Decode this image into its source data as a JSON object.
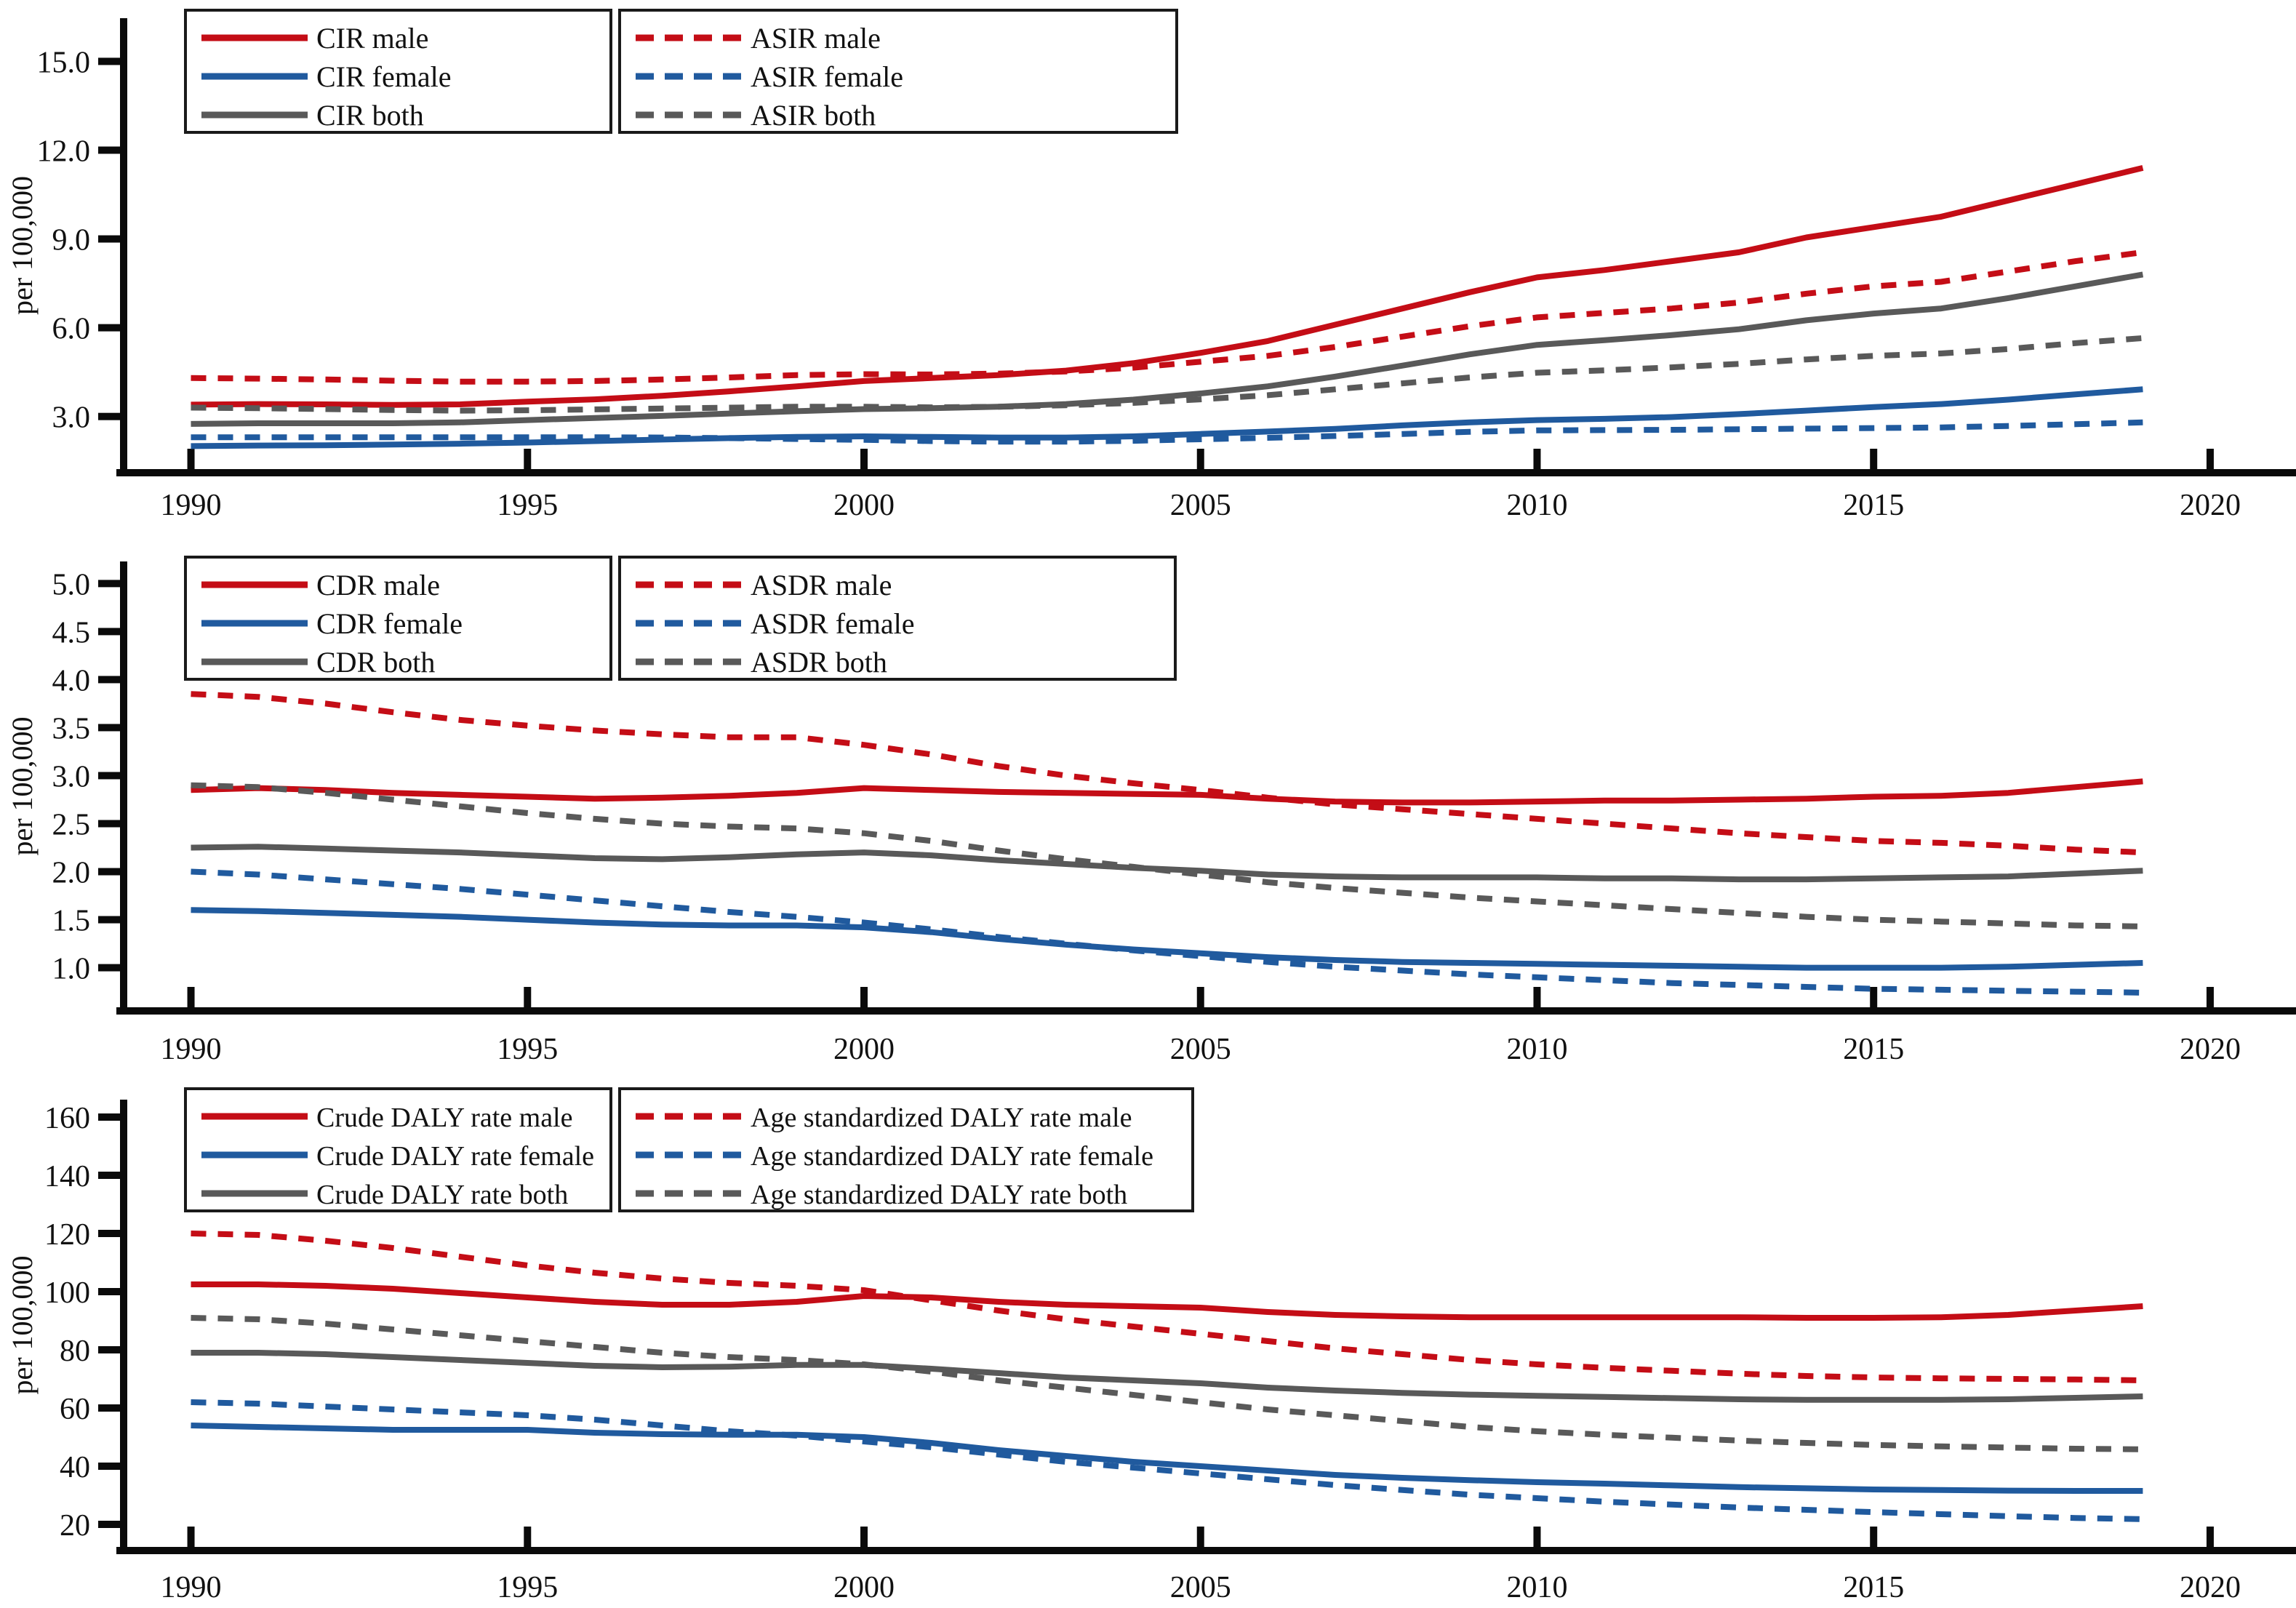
{
  "figure": {
    "ylabel": "per 100,000"
  },
  "colors": {
    "male": "#c40d16",
    "female": "#205a9e",
    "both": "#595959",
    "axis": "#0a0a0a",
    "text": "#111111",
    "legend_border": "#1a1a1a",
    "background": "#ffffff"
  },
  "x_axis": {
    "years": [
      1990,
      1991,
      1992,
      1993,
      1994,
      1995,
      1996,
      1997,
      1998,
      1999,
      2000,
      2001,
      2002,
      2003,
      2004,
      2005,
      2006,
      2007,
      2008,
      2009,
      2010,
      2011,
      2012,
      2013,
      2014,
      2015,
      2016,
      2017,
      2018,
      2019
    ],
    "ticks": [
      1990,
      1995,
      2000,
      2005,
      2010,
      2015,
      2020
    ],
    "xlim": [
      1989.0,
      2021.2
    ]
  },
  "chart_data": [
    {
      "type": "line",
      "name": "incidence",
      "ylabel": "per 100,000",
      "ylim": [
        1.1,
        16.46
      ],
      "yticks": [
        3.0,
        6.0,
        9.0,
        12.0,
        15.0
      ],
      "ytick_decimals": 1,
      "grid": false,
      "legend_position": "top-left, two boxes (solid | dashed)",
      "series": [
        {
          "name": "CIR male",
          "color": "male",
          "dashed": false,
          "values": [
            3.4,
            3.42,
            3.41,
            3.39,
            3.41,
            3.5,
            3.58,
            3.7,
            3.85,
            4.02,
            4.2,
            4.3,
            4.4,
            4.55,
            4.8,
            5.15,
            5.55,
            6.1,
            6.65,
            7.2,
            7.7,
            7.95,
            8.25,
            8.55,
            9.05,
            9.4,
            9.75,
            10.3,
            10.85,
            11.4
          ]
        },
        {
          "name": "CIR female",
          "color": "female",
          "dashed": false,
          "values": [
            2.0,
            2.02,
            2.03,
            2.05,
            2.08,
            2.12,
            2.17,
            2.22,
            2.27,
            2.31,
            2.33,
            2.31,
            2.29,
            2.29,
            2.33,
            2.41,
            2.49,
            2.58,
            2.7,
            2.8,
            2.88,
            2.92,
            2.98,
            3.08,
            3.2,
            3.32,
            3.42,
            3.57,
            3.75,
            3.92
          ]
        },
        {
          "name": "CIR both",
          "color": "both",
          "dashed": false,
          "values": [
            2.75,
            2.77,
            2.77,
            2.77,
            2.8,
            2.88,
            2.95,
            3.02,
            3.1,
            3.18,
            3.25,
            3.28,
            3.33,
            3.42,
            3.57,
            3.78,
            4.02,
            4.35,
            4.72,
            5.1,
            5.42,
            5.58,
            5.75,
            5.95,
            6.25,
            6.48,
            6.65,
            7.0,
            7.4,
            7.8
          ]
        },
        {
          "name": "ASIR male",
          "color": "male",
          "dashed": true,
          "values": [
            4.3,
            4.28,
            4.25,
            4.21,
            4.18,
            4.18,
            4.2,
            4.25,
            4.32,
            4.4,
            4.43,
            4.42,
            4.45,
            4.52,
            4.65,
            4.85,
            5.05,
            5.35,
            5.7,
            6.05,
            6.35,
            6.5,
            6.65,
            6.85,
            7.15,
            7.4,
            7.55,
            7.9,
            8.25,
            8.55
          ]
        },
        {
          "name": "ASIR female",
          "color": "female",
          "dashed": true,
          "values": [
            2.3,
            2.3,
            2.3,
            2.3,
            2.3,
            2.3,
            2.3,
            2.29,
            2.27,
            2.24,
            2.21,
            2.17,
            2.15,
            2.15,
            2.18,
            2.23,
            2.28,
            2.34,
            2.41,
            2.48,
            2.53,
            2.54,
            2.55,
            2.57,
            2.59,
            2.61,
            2.63,
            2.68,
            2.74,
            2.8
          ]
        },
        {
          "name": "ASIR both",
          "color": "both",
          "dashed": true,
          "values": [
            3.3,
            3.28,
            3.25,
            3.22,
            3.2,
            3.21,
            3.24,
            3.27,
            3.3,
            3.33,
            3.33,
            3.31,
            3.33,
            3.38,
            3.46,
            3.58,
            3.72,
            3.92,
            4.12,
            4.32,
            4.48,
            4.56,
            4.66,
            4.78,
            4.93,
            5.05,
            5.13,
            5.28,
            5.48,
            5.65
          ]
        }
      ]
    },
    {
      "type": "line",
      "name": "death",
      "ylabel": "per 100,000",
      "ylim": [
        0.55,
        5.23
      ],
      "yticks": [
        1.0,
        1.5,
        2.0,
        2.5,
        3.0,
        3.5,
        4.0,
        4.5,
        5.0
      ],
      "ytick_decimals": 1,
      "grid": false,
      "legend_position": "top-left, two boxes (solid | dashed)",
      "series": [
        {
          "name": "CDR male",
          "color": "male",
          "dashed": false,
          "values": [
            2.85,
            2.87,
            2.85,
            2.82,
            2.8,
            2.78,
            2.76,
            2.77,
            2.79,
            2.82,
            2.87,
            2.85,
            2.83,
            2.82,
            2.81,
            2.8,
            2.76,
            2.73,
            2.72,
            2.72,
            2.73,
            2.74,
            2.74,
            2.75,
            2.76,
            2.78,
            2.79,
            2.82,
            2.88,
            2.94
          ]
        },
        {
          "name": "CDR female",
          "color": "female",
          "dashed": false,
          "values": [
            1.6,
            1.59,
            1.57,
            1.55,
            1.53,
            1.5,
            1.47,
            1.45,
            1.44,
            1.44,
            1.42,
            1.37,
            1.3,
            1.24,
            1.19,
            1.15,
            1.11,
            1.08,
            1.06,
            1.05,
            1.04,
            1.03,
            1.02,
            1.01,
            1.0,
            1.0,
            1.0,
            1.01,
            1.03,
            1.05
          ]
        },
        {
          "name": "CDR both",
          "color": "both",
          "dashed": false,
          "values": [
            2.25,
            2.26,
            2.24,
            2.22,
            2.2,
            2.17,
            2.14,
            2.13,
            2.15,
            2.18,
            2.2,
            2.17,
            2.12,
            2.08,
            2.04,
            2.01,
            1.97,
            1.95,
            1.94,
            1.94,
            1.94,
            1.93,
            1.93,
            1.92,
            1.92,
            1.93,
            1.94,
            1.95,
            1.98,
            2.01
          ]
        },
        {
          "name": "ASDR male",
          "color": "male",
          "dashed": true,
          "values": [
            3.85,
            3.82,
            3.75,
            3.66,
            3.58,
            3.52,
            3.47,
            3.43,
            3.4,
            3.4,
            3.32,
            3.22,
            3.1,
            3.0,
            2.92,
            2.85,
            2.77,
            2.7,
            2.65,
            2.6,
            2.55,
            2.5,
            2.45,
            2.4,
            2.36,
            2.32,
            2.3,
            2.27,
            2.23,
            2.2
          ]
        },
        {
          "name": "ASDR female",
          "color": "female",
          "dashed": true,
          "values": [
            2.0,
            1.97,
            1.92,
            1.87,
            1.82,
            1.76,
            1.7,
            1.64,
            1.58,
            1.53,
            1.47,
            1.4,
            1.32,
            1.25,
            1.18,
            1.12,
            1.06,
            1.01,
            0.97,
            0.93,
            0.9,
            0.87,
            0.84,
            0.82,
            0.8,
            0.78,
            0.77,
            0.76,
            0.75,
            0.74
          ]
        },
        {
          "name": "ASDR both",
          "color": "both",
          "dashed": true,
          "values": [
            2.9,
            2.88,
            2.82,
            2.75,
            2.68,
            2.61,
            2.55,
            2.5,
            2.47,
            2.45,
            2.4,
            2.32,
            2.22,
            2.13,
            2.05,
            1.97,
            1.89,
            1.83,
            1.78,
            1.73,
            1.69,
            1.65,
            1.61,
            1.57,
            1.53,
            1.5,
            1.48,
            1.46,
            1.44,
            1.43
          ]
        }
      ]
    },
    {
      "type": "line",
      "name": "daly",
      "ylabel": "per 100,000",
      "ylim": [
        11,
        166
      ],
      "yticks": [
        20,
        40,
        60,
        80,
        100,
        120,
        140,
        160
      ],
      "ytick_decimals": 0,
      "grid": false,
      "legend_position": "top-left, two boxes (solid | dashed)",
      "series": [
        {
          "name": "Crude DALY rate male",
          "color": "male",
          "dashed": false,
          "values": [
            102.5,
            102.5,
            102,
            101,
            99.5,
            98,
            96.5,
            95.5,
            95.5,
            96.5,
            98.5,
            98,
            96.5,
            95.5,
            95,
            94.5,
            93,
            92,
            91.5,
            91.2,
            91.2,
            91.2,
            91.2,
            91.2,
            91,
            91,
            91.2,
            92,
            93.5,
            95
          ]
        },
        {
          "name": "Crude DALY rate female",
          "color": "female",
          "dashed": false,
          "values": [
            54,
            53.5,
            53,
            52.5,
            52.5,
            52.5,
            51.5,
            51,
            50.8,
            50.8,
            50,
            48,
            45.5,
            43.5,
            41.5,
            40,
            38.5,
            37,
            36,
            35.2,
            34.5,
            34,
            33.4,
            32.8,
            32.4,
            32,
            31.8,
            31.6,
            31.5,
            31.5
          ]
        },
        {
          "name": "Crude DALY rate both",
          "color": "both",
          "dashed": false,
          "values": [
            79,
            79,
            78.5,
            77.5,
            76.5,
            75.5,
            74.5,
            74,
            74.2,
            74.8,
            74.8,
            73.5,
            72,
            70.5,
            69.5,
            68.5,
            67,
            66,
            65.2,
            64.6,
            64.2,
            63.8,
            63.4,
            63,
            62.8,
            62.8,
            62.8,
            63,
            63.5,
            64
          ]
        },
        {
          "name": "Age standardized DALY rate male",
          "color": "male",
          "dashed": true,
          "values": [
            120,
            119.5,
            117.5,
            115,
            112,
            109,
            106.5,
            104.5,
            103,
            102,
            100.5,
            97,
            93.5,
            90.5,
            88,
            85.5,
            83,
            80.5,
            78.5,
            76.5,
            75,
            73.8,
            72.8,
            71.8,
            71,
            70.5,
            70.2,
            70,
            69.8,
            69.5
          ]
        },
        {
          "name": "Age standardized DALY rate female",
          "color": "female",
          "dashed": true,
          "values": [
            62,
            61.5,
            60.5,
            59.5,
            58.5,
            57.5,
            56,
            54,
            52,
            50.5,
            48.5,
            46.5,
            44,
            41.5,
            39.5,
            37.5,
            35.5,
            33.5,
            31.8,
            30.2,
            29,
            27.8,
            26.8,
            25.8,
            25,
            24.2,
            23.5,
            22.8,
            22.2,
            21.8
          ]
        },
        {
          "name": "Age standardized DALY rate both",
          "color": "both",
          "dashed": true,
          "values": [
            91,
            90.5,
            89,
            87,
            85,
            83,
            81,
            79,
            77.5,
            76.5,
            75,
            72.5,
            69.5,
            67,
            64.5,
            62,
            59.5,
            57.5,
            55.5,
            53.5,
            52,
            50.8,
            49.8,
            48.8,
            48,
            47.3,
            46.8,
            46.4,
            46,
            45.8
          ]
        }
      ]
    }
  ]
}
